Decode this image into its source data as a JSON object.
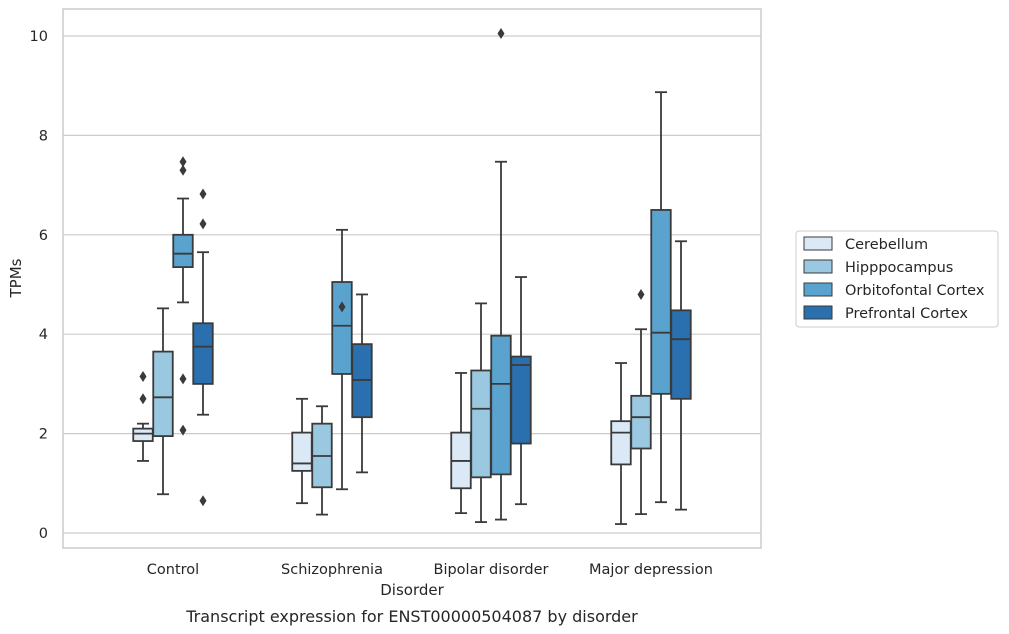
{
  "chart_data": {
    "type": "box",
    "caption": "Transcript expression for ENST00000504087 by disorder",
    "xlabel": "Disorder",
    "ylabel": "TPMs",
    "ylim": [
      -0.3,
      10.55
    ],
    "yticks": [
      0,
      2,
      4,
      6,
      8,
      10
    ],
    "grid": "horizontal",
    "legend_position": "right",
    "categories": [
      "Control",
      "Schizophrenia",
      "Bipolar disorder",
      "Major depression"
    ],
    "series": [
      {
        "name": "Cerebellum",
        "color": "#dbe9f6",
        "boxes": [
          {
            "whislo": 1.45,
            "q1": 1.85,
            "med": 2.0,
            "q3": 2.1,
            "whishi": 2.2,
            "fliers": [
              2.7,
              3.15
            ]
          },
          {
            "whislo": 0.6,
            "q1": 1.25,
            "med": 1.4,
            "q3": 2.02,
            "whishi": 2.7,
            "fliers": []
          },
          {
            "whislo": 0.4,
            "q1": 0.9,
            "med": 1.45,
            "q3": 2.02,
            "whishi": 3.22,
            "fliers": []
          },
          {
            "whislo": 0.18,
            "q1": 1.38,
            "med": 2.02,
            "q3": 2.25,
            "whishi": 3.42,
            "fliers": []
          }
        ]
      },
      {
        "name": "Hipppocampus",
        "color": "#9ac8e0",
        "boxes": [
          {
            "whislo": 0.78,
            "q1": 1.95,
            "med": 2.73,
            "q3": 3.65,
            "whishi": 4.52,
            "fliers": []
          },
          {
            "whislo": 0.37,
            "q1": 0.92,
            "med": 1.55,
            "q3": 2.2,
            "whishi": 2.55,
            "fliers": []
          },
          {
            "whislo": 0.22,
            "q1": 1.12,
            "med": 2.5,
            "q3": 3.27,
            "whishi": 4.62,
            "fliers": []
          },
          {
            "whislo": 0.38,
            "q1": 1.7,
            "med": 2.33,
            "q3": 2.76,
            "whishi": 4.1,
            "fliers": [
              4.8
            ]
          }
        ]
      },
      {
        "name": "Orbitofontal Cortex",
        "color": "#5ba3cf",
        "boxes": [
          {
            "whislo": 4.64,
            "q1": 5.35,
            "med": 5.62,
            "q3": 6.0,
            "whishi": 6.73,
            "fliers": [
              2.07,
              3.1,
              7.3,
              7.47
            ]
          },
          {
            "whislo": 0.88,
            "q1": 3.2,
            "med": 4.17,
            "q3": 5.05,
            "whishi": 6.1,
            "fliers": [
              4.55
            ]
          },
          {
            "whislo": 0.27,
            "q1": 1.18,
            "med": 3.0,
            "q3": 3.97,
            "whishi": 7.47,
            "fliers": [
              10.05
            ]
          },
          {
            "whislo": 0.62,
            "q1": 2.8,
            "med": 4.03,
            "q3": 6.5,
            "whishi": 8.87,
            "fliers": []
          }
        ]
      },
      {
        "name": "Prefrontal Cortex",
        "color": "#2a6fae",
        "boxes": [
          {
            "whislo": 2.38,
            "q1": 3.0,
            "med": 3.75,
            "q3": 4.22,
            "whishi": 5.65,
            "fliers": [
              0.65,
              6.22,
              6.82
            ]
          },
          {
            "whislo": 1.22,
            "q1": 2.33,
            "med": 3.08,
            "q3": 3.8,
            "whishi": 4.8,
            "fliers": []
          },
          {
            "whislo": 0.58,
            "q1": 1.8,
            "med": 3.38,
            "q3": 3.55,
            "whishi": 5.15,
            "fliers": []
          },
          {
            "whislo": 0.47,
            "q1": 2.7,
            "med": 3.9,
            "q3": 4.48,
            "whishi": 5.87,
            "fliers": []
          }
        ]
      }
    ]
  }
}
